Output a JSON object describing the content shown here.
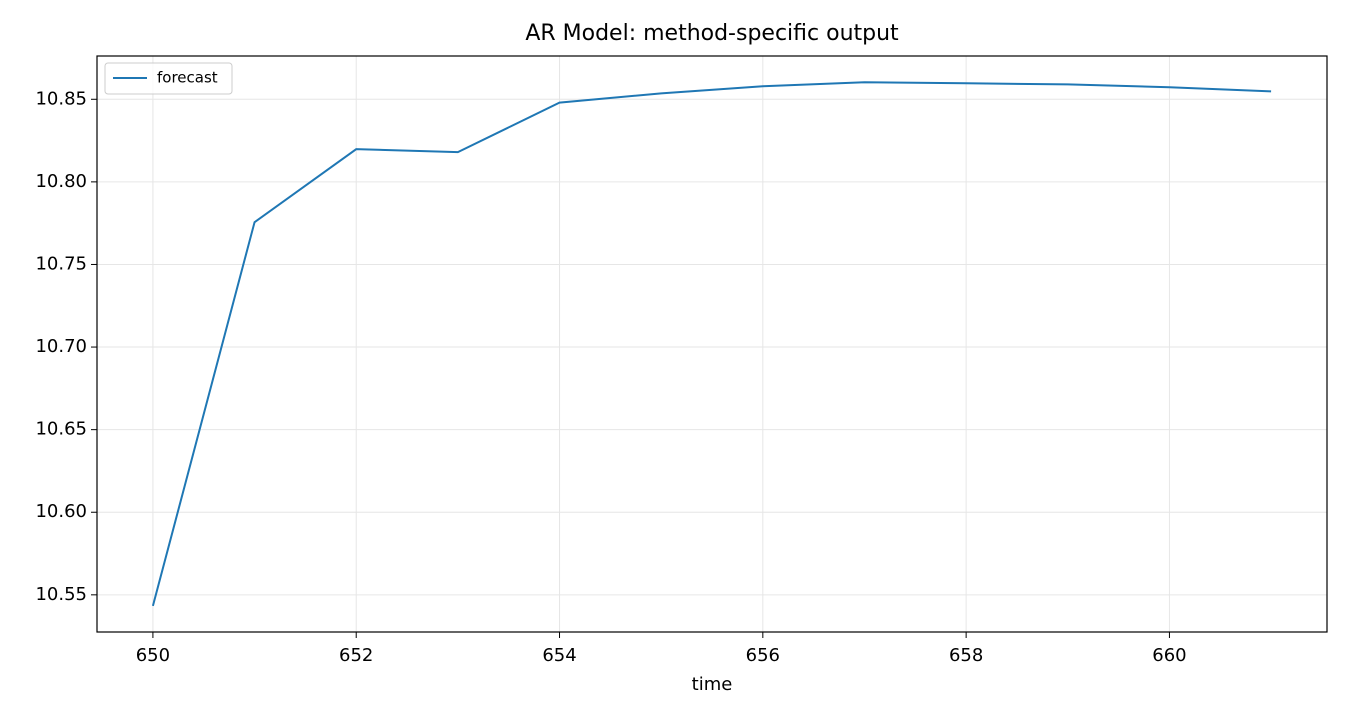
{
  "chart_data": {
    "type": "line",
    "title": "AR Model: method-specific output",
    "xlabel": "time",
    "x": [
      650,
      651,
      652,
      653,
      654,
      655,
      656,
      657,
      658,
      659,
      660,
      661
    ],
    "series": [
      {
        "name": "forecast",
        "color": "#1f77b4",
        "values": [
          10.5433,
          10.7756,
          10.8198,
          10.818,
          10.848,
          10.8536,
          10.8579,
          10.8603,
          10.8597,
          10.859,
          10.8573,
          10.8548
        ]
      }
    ],
    "xlim": [
      649.45,
      661.55
    ],
    "xticks": [
      650,
      652,
      654,
      656,
      658,
      660
    ],
    "ylim": [
      10.5275,
      10.8762
    ],
    "yticks": [
      10.55,
      {
        "value": 10.6,
        "label": "10.60"
      },
      10.65,
      {
        "value": 10.7,
        "label": "10.70"
      },
      10.75,
      {
        "value": 10.8,
        "label": "10.80"
      },
      10.85
    ],
    "grid": true,
    "legend": "upper left"
  }
}
